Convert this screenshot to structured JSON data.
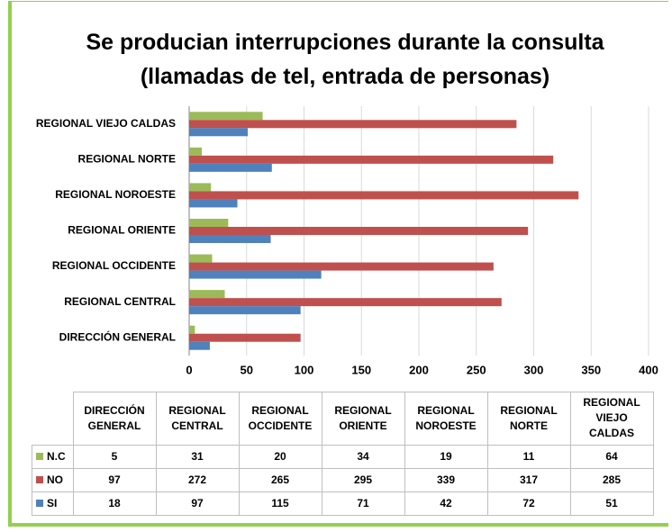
{
  "chart_data": {
    "type": "bar",
    "orientation": "horizontal",
    "title": "Se producian interrupciones durante la consulta (llamadas de tel, entrada de personas)",
    "categories": [
      "DIRECCIÓN GENERAL",
      "REGIONAL CENTRAL",
      "REGIONAL OCCIDENTE",
      "REGIONAL ORIENTE",
      "REGIONAL NOROESTE",
      "REGIONAL NORTE",
      "REGIONAL VIEJO CALDAS"
    ],
    "series": [
      {
        "name": "N.C",
        "color": "#9bbb59",
        "values": [
          5,
          31,
          20,
          34,
          19,
          11,
          64
        ]
      },
      {
        "name": "NO",
        "color": "#c0504d",
        "values": [
          97,
          272,
          265,
          295,
          339,
          317,
          285
        ]
      },
      {
        "name": "SI",
        "color": "#4f81bd",
        "values": [
          18,
          97,
          115,
          71,
          42,
          72,
          51
        ]
      }
    ],
    "xlim": [
      0,
      400
    ],
    "xticks": [
      0,
      50,
      100,
      150,
      200,
      250,
      300,
      350,
      400
    ],
    "grid": true,
    "data_table": true
  }
}
